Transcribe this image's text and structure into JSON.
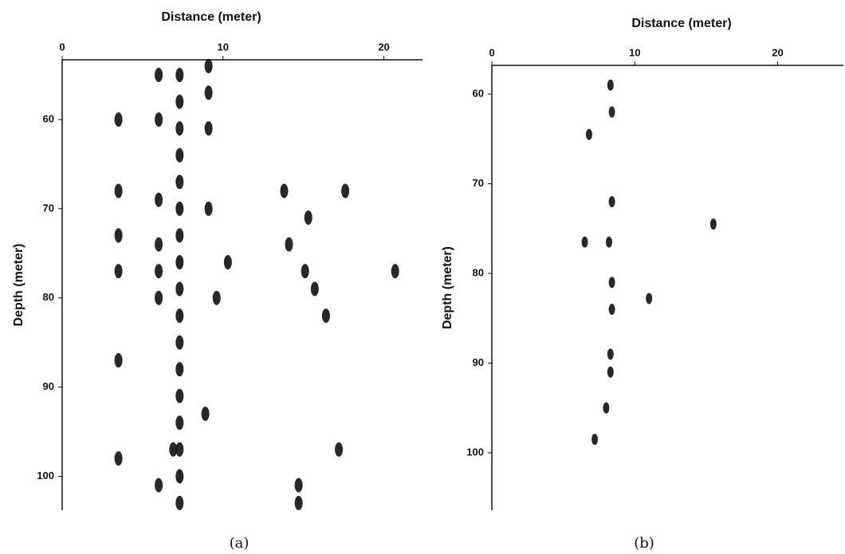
{
  "chart_data": [
    {
      "type": "scatter",
      "caption": "(a)",
      "xlabel": "Distance (meter)",
      "ylabel": "Depth (meter)",
      "xlim": [
        0,
        22.4
      ],
      "ylim": [
        53.3,
        103.8
      ],
      "xticks": [
        0,
        10,
        20
      ],
      "yticks": [
        60,
        70,
        80,
        90,
        100
      ],
      "y_inverted": true,
      "color": "#111111",
      "x": [
        7.3,
        7.3,
        7.3,
        7.3,
        7.3,
        7.3,
        7.3,
        7.3,
        7.3,
        7.3,
        7.3,
        7.3,
        7.3,
        7.3,
        7.3,
        7.3,
        7.3,
        6.0,
        6.0,
        6.0,
        6.0,
        6.0,
        6.0,
        9.1,
        9.1,
        9.1,
        9.1,
        9.6,
        10.3,
        3.5,
        3.5,
        3.5,
        3.5,
        3.5,
        3.5,
        13.8,
        15.3,
        14.1,
        15.1,
        15.7,
        16.4,
        17.6,
        20.7,
        14.7,
        14.7,
        17.2,
        8.9,
        6.9,
        6.0
      ],
      "values": [
        55,
        58,
        61,
        64,
        67,
        70,
        73,
        76,
        79,
        82,
        85,
        88,
        91,
        94,
        97,
        100,
        103,
        55,
        60,
        69,
        74,
        77,
        80,
        54,
        57,
        61,
        70,
        80,
        76,
        60,
        68,
        73,
        77,
        87,
        98,
        68,
        71,
        74,
        77,
        79,
        82,
        68,
        77,
        101,
        103,
        97,
        93,
        97,
        101
      ]
    },
    {
      "type": "scatter",
      "caption": "(b)",
      "xlabel": "Distance (meter)",
      "ylabel": "Depth (meter)",
      "xlim": [
        0,
        24.6
      ],
      "ylim": [
        56.8,
        106.4
      ],
      "xticks": [
        0,
        10,
        20
      ],
      "yticks": [
        60,
        70,
        80,
        90,
        100
      ],
      "y_inverted": true,
      "color": "#111111",
      "x": [
        8.3,
        8.4,
        8.4,
        6.5,
        8.2,
        8.4,
        8.4,
        11.0,
        8.3,
        8.3,
        8.0,
        7.2,
        6.8,
        15.5
      ],
      "values": [
        59,
        62,
        72,
        76.5,
        76.5,
        81,
        84,
        82.8,
        89,
        91,
        95,
        98.5,
        64.5,
        74.5
      ]
    }
  ]
}
